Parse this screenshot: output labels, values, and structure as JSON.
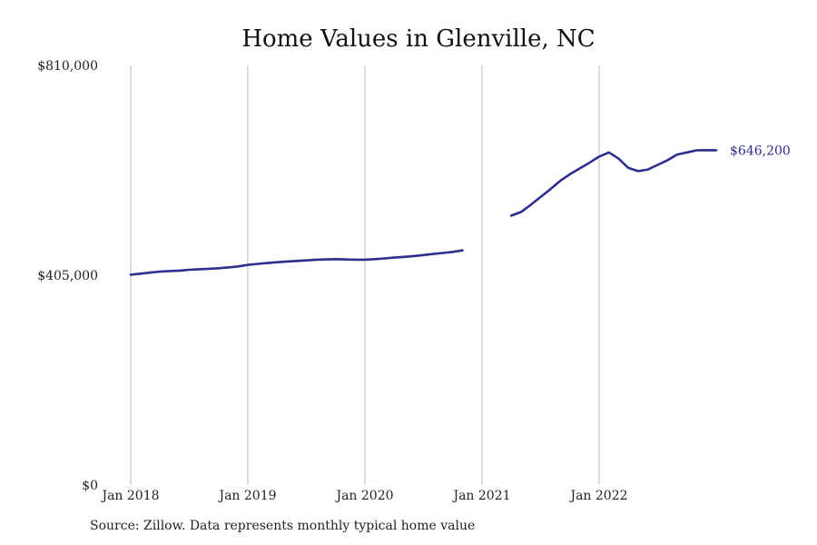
{
  "colors": {
    "line": "#2e2e8f",
    "grid": "#bdbdbd",
    "background": "#ffffff"
  },
  "chart_data": {
    "type": "line",
    "title": "Home Values in Glenville, NC",
    "xlabel": "",
    "ylabel": "",
    "ylim": [
      0,
      810000
    ],
    "y_ticks": [
      {
        "value": 0,
        "label": "$0"
      },
      {
        "value": 405000,
        "label": "$405,000"
      },
      {
        "value": 810000,
        "label": "$810,000"
      }
    ],
    "x_ticks": [
      {
        "value": "2018-01",
        "label": "Jan 2018"
      },
      {
        "value": "2019-01",
        "label": "Jan 2019"
      },
      {
        "value": "2020-01",
        "label": "Jan 2020"
      },
      {
        "value": "2021-01",
        "label": "Jan 2021"
      },
      {
        "value": "2022-01",
        "label": "Jan 2022"
      }
    ],
    "grid": "vertical",
    "series": [
      {
        "values": [
          [
            "2018-01",
            406000
          ],
          [
            "2018-02",
            408000
          ],
          [
            "2018-03",
            410000
          ],
          [
            "2018-04",
            412000
          ],
          [
            "2018-05",
            413000
          ],
          [
            "2018-06",
            414000
          ],
          [
            "2018-07",
            415500
          ],
          [
            "2018-08",
            416500
          ],
          [
            "2018-09",
            417500
          ],
          [
            "2018-10",
            418500
          ],
          [
            "2018-11",
            420000
          ],
          [
            "2018-12",
            422000
          ],
          [
            "2019-01",
            425000
          ],
          [
            "2019-02",
            427000
          ],
          [
            "2019-03",
            428500
          ],
          [
            "2019-04",
            430000
          ],
          [
            "2019-05",
            431500
          ],
          [
            "2019-06",
            432500
          ],
          [
            "2019-07",
            433500
          ],
          [
            "2019-08",
            435000
          ],
          [
            "2019-09",
            435500
          ],
          [
            "2019-10",
            436000
          ],
          [
            "2019-11",
            435500
          ],
          [
            "2019-12",
            435000
          ],
          [
            "2020-01",
            435000
          ],
          [
            "2020-02",
            436000
          ],
          [
            "2020-03",
            437500
          ],
          [
            "2020-04",
            439000
          ],
          [
            "2020-05",
            440500
          ],
          [
            "2020-06",
            442000
          ],
          [
            "2020-07",
            444000
          ],
          [
            "2020-08",
            446000
          ],
          [
            "2020-09",
            448000
          ],
          [
            "2020-10",
            450000
          ],
          [
            "2020-11",
            453000
          ],
          [
            "2021-04",
            520000
          ],
          [
            "2021-05",
            527000
          ],
          [
            "2021-06",
            541000
          ],
          [
            "2021-07",
            556000
          ],
          [
            "2021-08",
            571000
          ],
          [
            "2021-09",
            587000
          ],
          [
            "2021-10",
            600000
          ],
          [
            "2021-11",
            611000
          ],
          [
            "2021-12",
            622000
          ],
          [
            "2022-01",
            634000
          ],
          [
            "2022-02",
            642000
          ],
          [
            "2022-03",
            630000
          ],
          [
            "2022-04",
            612000
          ],
          [
            "2022-05",
            606000
          ],
          [
            "2022-06",
            609000
          ],
          [
            "2022-07",
            618000
          ],
          [
            "2022-08",
            627000
          ],
          [
            "2022-09",
            638000
          ],
          [
            "2022-10",
            642000
          ],
          [
            "2022-11",
            646000
          ],
          [
            "2022-12",
            646500
          ],
          [
            "2023-01",
            646200
          ]
        ],
        "end_label": "$646,200"
      }
    ],
    "source": "Source: Zillow. Data represents monthly typical home value"
  }
}
